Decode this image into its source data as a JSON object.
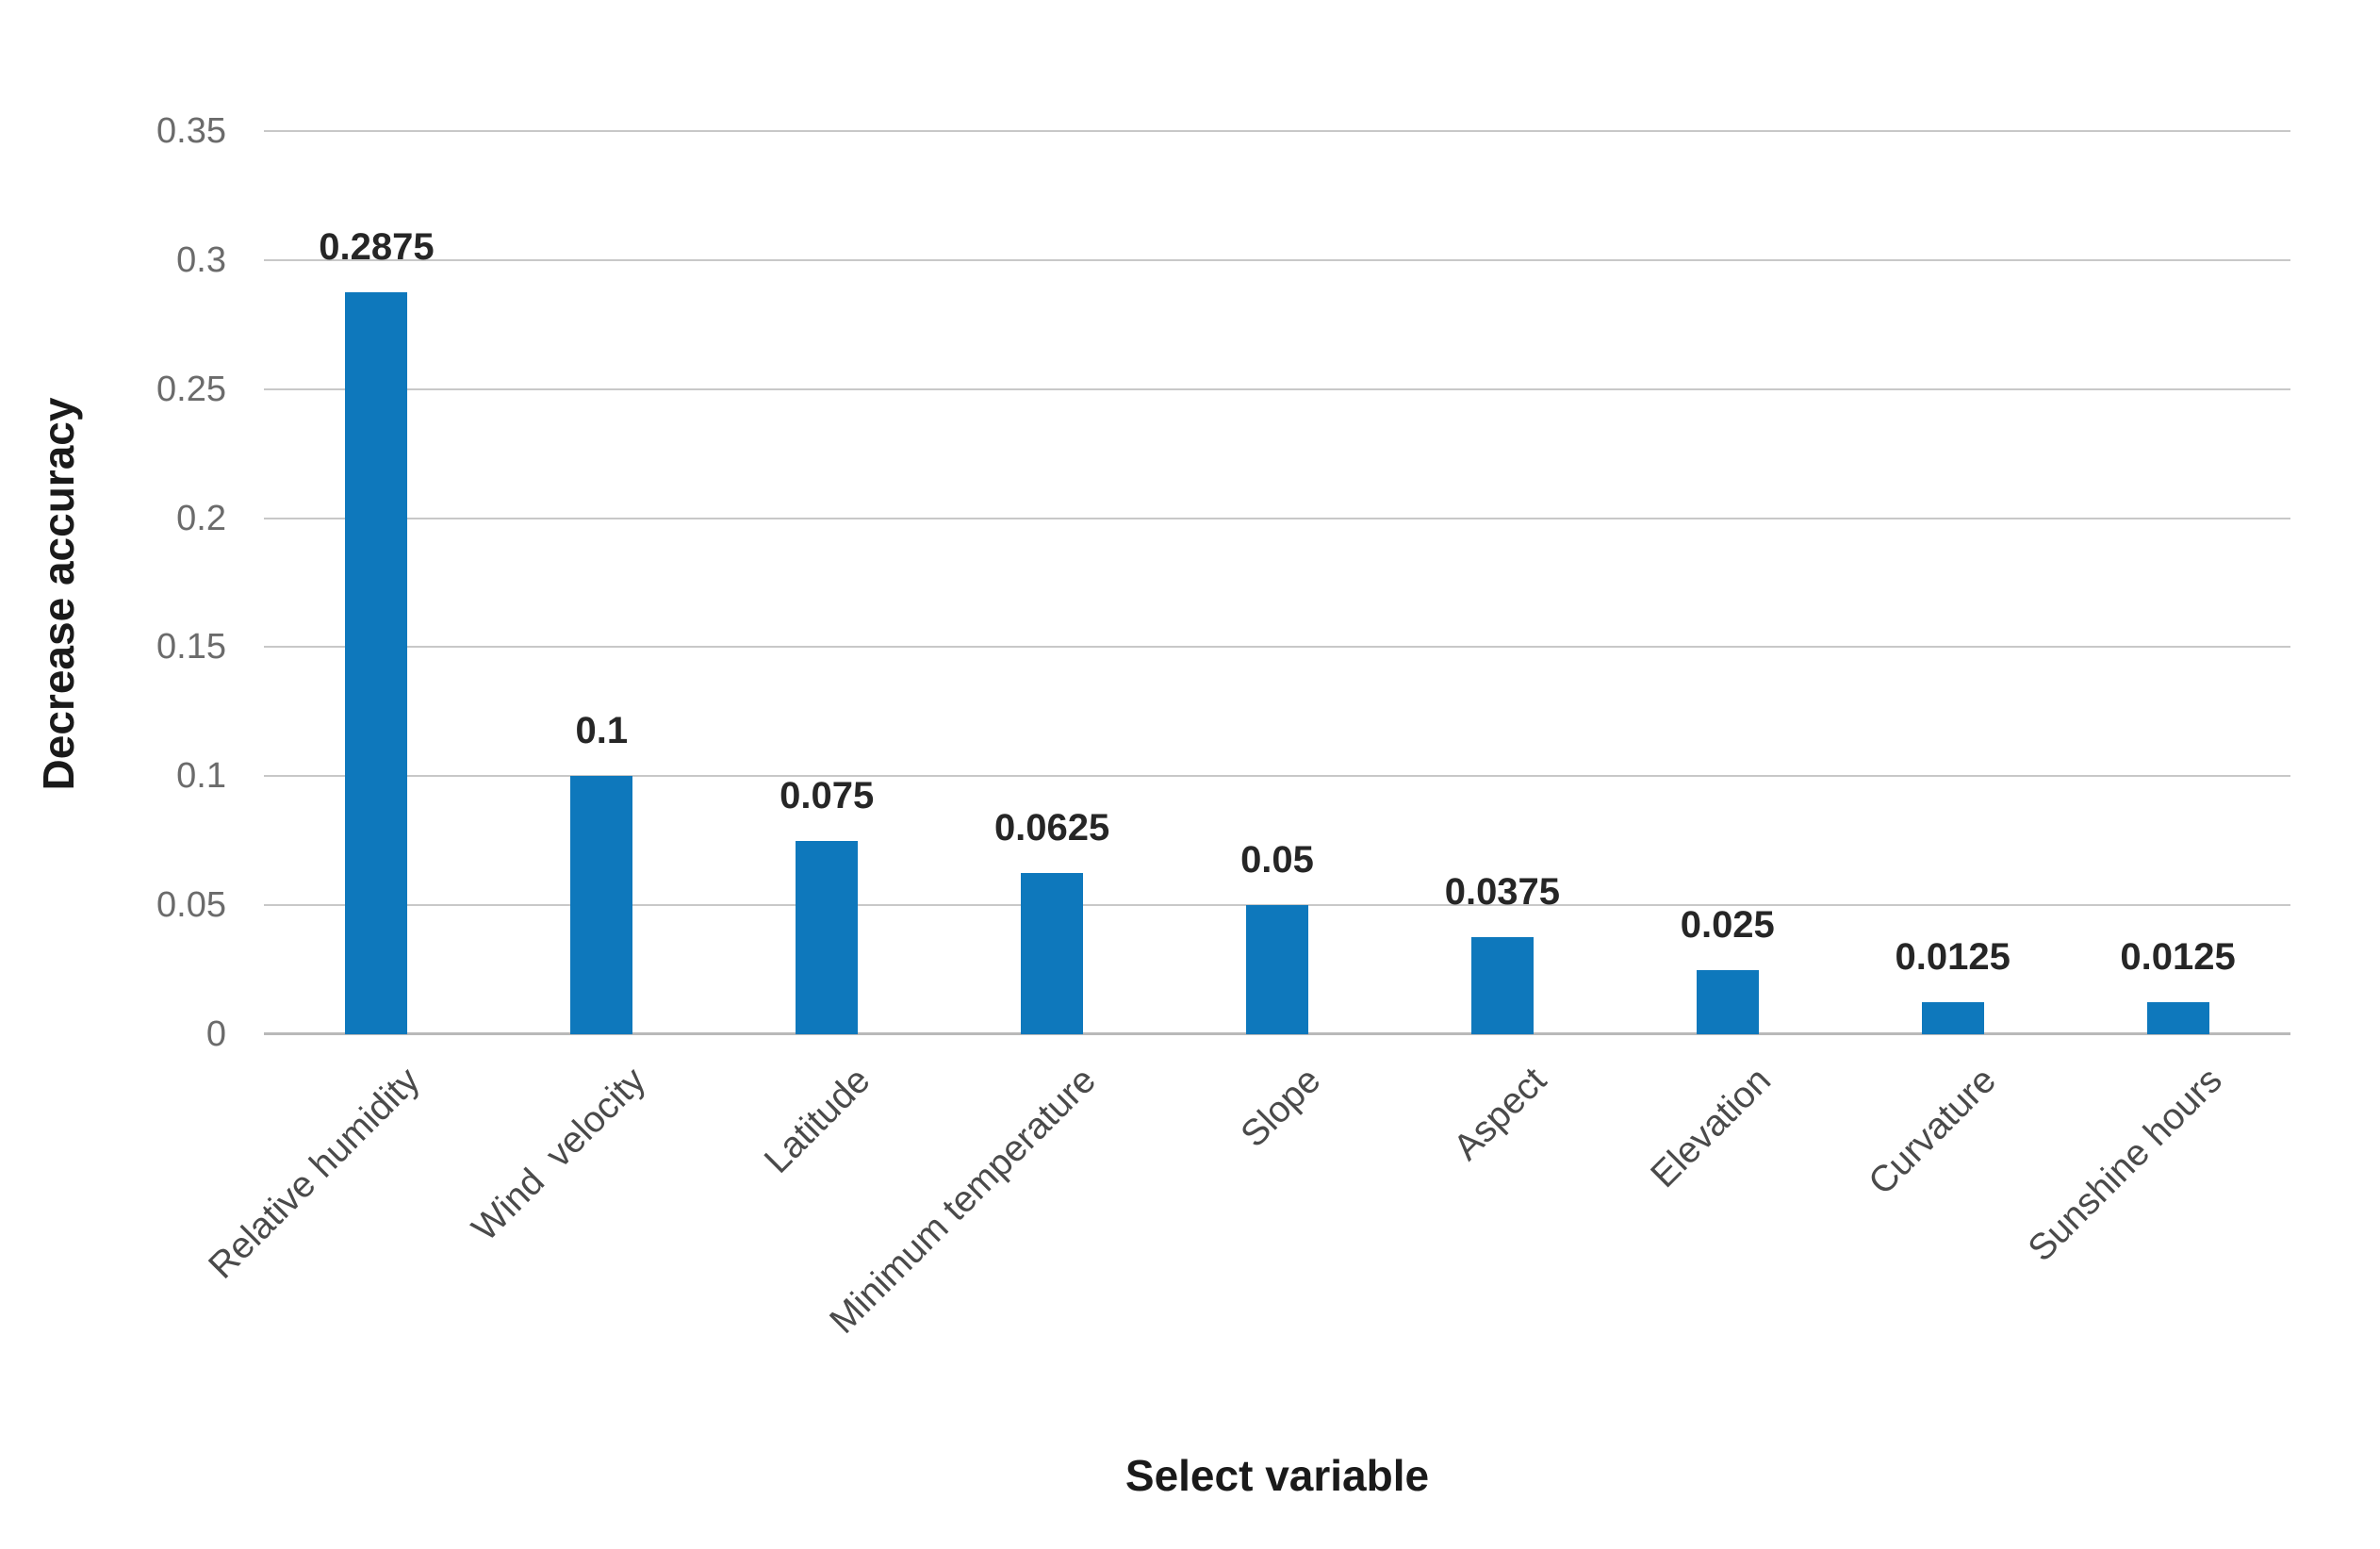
{
  "figure": {
    "background": "#ffffff"
  },
  "chart_data": {
    "type": "bar",
    "title": "",
    "xlabel": "Select variable",
    "ylabel": "Decrease accuracy",
    "categories": [
      "Relative humidity",
      "Wind  velocity",
      "Latitude",
      "Minimum temperature",
      "Slope",
      "Aspect",
      "Elevation",
      "Curvature",
      "Sunshine hours"
    ],
    "values": [
      0.2875,
      0.1,
      0.075,
      0.0625,
      0.05,
      0.0375,
      0.025,
      0.0125,
      0.0125
    ],
    "value_labels": [
      "0.2875",
      "0.1",
      "0.075",
      "0.0625",
      "0.05",
      "0.0375",
      "0.025",
      "0.0125",
      "0.0125"
    ],
    "y_ticks": [
      {
        "label": "0.35",
        "value": 0.35
      },
      {
        "label": "0.3",
        "value": 0.3
      },
      {
        "label": "0.25",
        "value": 0.25
      },
      {
        "label": "0.2",
        "value": 0.2
      },
      {
        "label": "0.15",
        "value": 0.15
      },
      {
        "label": "0.1",
        "value": 0.1
      },
      {
        "label": "0.05",
        "value": 0.05
      },
      {
        "label": "0",
        "value": 0.0
      }
    ],
    "ylim": [
      0,
      0.35
    ],
    "grid": "horizontal",
    "legend": "none",
    "colors": {
      "bar": "#0E78BC",
      "gridline": "#C8C8C8",
      "axis_line": "#B9B9B9",
      "y_tick_label": "#6B6B6B",
      "x_tick_label": "#4A4A4A",
      "data_label": "#262626",
      "axis_title": "#1A1A1A"
    }
  }
}
